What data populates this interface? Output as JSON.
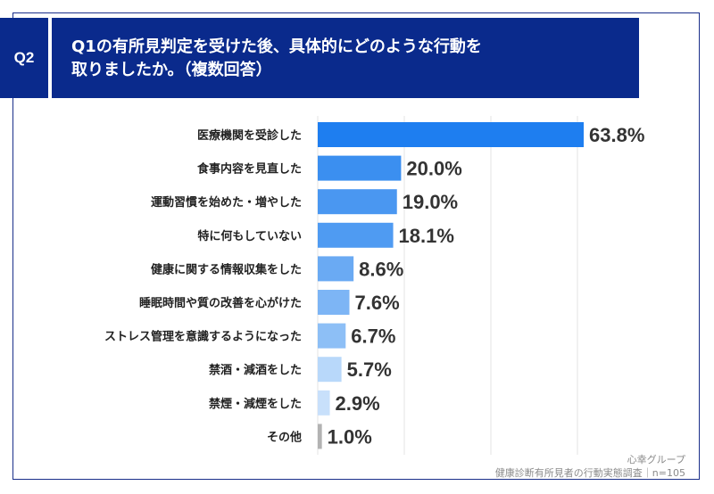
{
  "header": {
    "badge": "Q2",
    "title_line1": "Q1の有所見判定を受けた後、具体的にどのような行動を",
    "title_line2": "取りましたか。（複数回答）"
  },
  "footer": {
    "brand": "心幸グループ",
    "source": "健康診断有所見者の行動実態調査｜n=105"
  },
  "chart_data": {
    "type": "bar",
    "orientation": "horizontal",
    "unit": "%",
    "categories": [
      "医療機関を受診した",
      "食事内容を見直した",
      "運動習慣を始めた・増やした",
      "特に何もしていない",
      "健康に関する情報収集をした",
      "睡眠時間や質の改善を心がけた",
      "ストレス管理を意識するようになった",
      "禁酒・減酒をした",
      "禁煙・減煙をした",
      "その他"
    ],
    "values": [
      63.8,
      20.0,
      19.0,
      18.1,
      8.6,
      7.6,
      6.7,
      5.7,
      2.9,
      1.0
    ],
    "value_labels": [
      "63.8%",
      "20.0%",
      "19.0%",
      "18.1%",
      "8.6%",
      "7.6%",
      "6.7%",
      "5.7%",
      "2.9%",
      "1.0%"
    ],
    "bar_colors": [
      "#1e7ef0",
      "#3b8ff0",
      "#4a97f1",
      "#4f9bf2",
      "#6aaaf3",
      "#7db5f5",
      "#8dbff6",
      "#b8d8fa",
      "#c8e0fb",
      "#b3b3b3"
    ],
    "xlim": [
      0,
      65
    ],
    "grid": true,
    "legend": "none"
  }
}
